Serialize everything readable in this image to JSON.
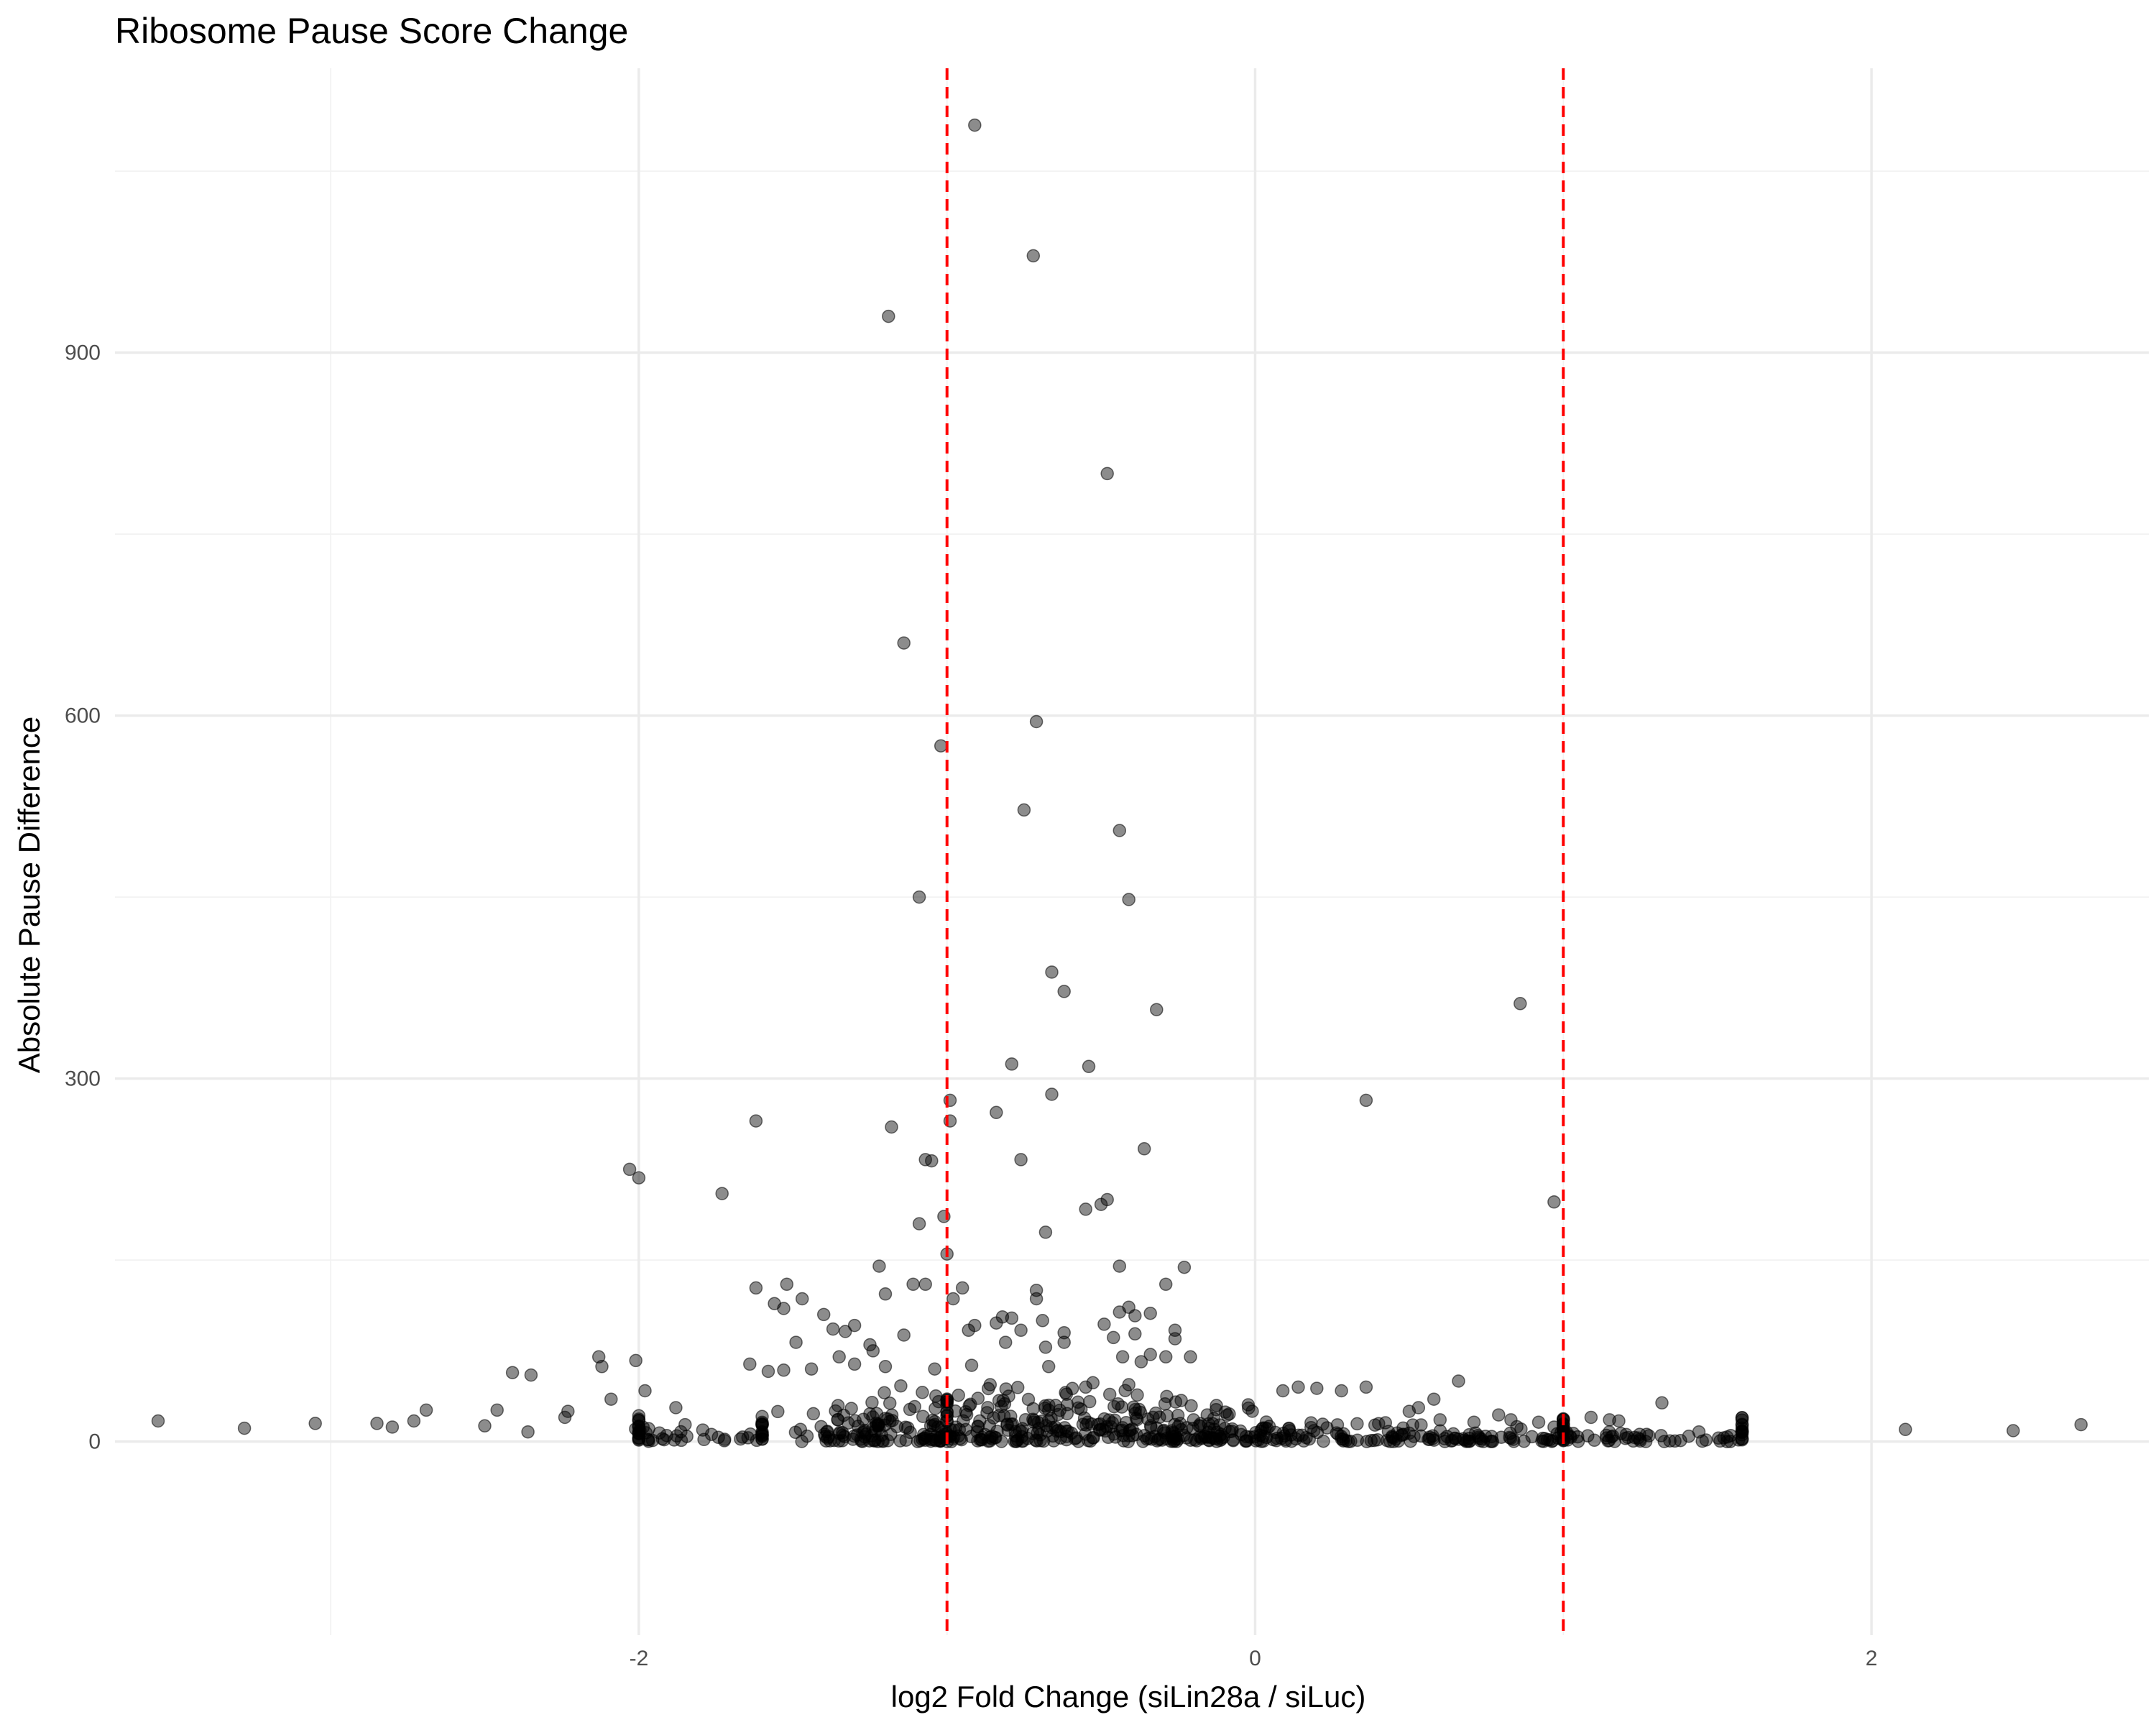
{
  "chart_data": {
    "type": "scatter",
    "title": "Ribosome Pause Score Change",
    "xlabel": "log2 Fold Change (siLin28a / siLuc)",
    "ylabel": "Absolute Pause Difference",
    "xlim": [
      -3.7,
      2.9
    ],
    "ylim": [
      -160,
      1135
    ],
    "x_ticks": [
      -2,
      0,
      2
    ],
    "y_ticks": [
      0,
      300,
      600,
      900
    ],
    "x_tick_labels": [
      "-2",
      "0",
      "2"
    ],
    "y_tick_labels": [
      "0",
      "300",
      "600",
      "900"
    ],
    "grid": true,
    "legend": "none",
    "reference_lines": [
      {
        "axis": "x",
        "value": -1,
        "color": "#ff0000",
        "style": "dashed"
      },
      {
        "axis": "x",
        "value": 1,
        "color": "#ff0000",
        "style": "dashed"
      }
    ],
    "point_color": "#000000",
    "points": [
      [
        -0.91,
        1088
      ],
      [
        -0.72,
        980
      ],
      [
        -1.19,
        930
      ],
      [
        -0.48,
        800
      ],
      [
        -1.14,
        660
      ],
      [
        -0.71,
        595
      ],
      [
        -1.02,
        575
      ],
      [
        -0.75,
        522
      ],
      [
        -0.44,
        505
      ],
      [
        -1.09,
        450
      ],
      [
        -0.41,
        448
      ],
      [
        -0.66,
        388
      ],
      [
        -0.62,
        372
      ],
      [
        -0.32,
        357
      ],
      [
        0.86,
        362
      ],
      [
        -0.79,
        312
      ],
      [
        -0.54,
        310
      ],
      [
        0.36,
        282
      ],
      [
        -0.99,
        282
      ],
      [
        -0.66,
        287
      ],
      [
        -0.84,
        272
      ],
      [
        -1.62,
        265
      ],
      [
        -1.18,
        260
      ],
      [
        -0.99,
        265
      ],
      [
        -2.03,
        225
      ],
      [
        -2.0,
        218
      ],
      [
        -0.36,
        242
      ],
      [
        -1.05,
        232
      ],
      [
        -1.07,
        233
      ],
      [
        -0.76,
        233
      ],
      [
        -1.73,
        205
      ],
      [
        -0.48,
        200
      ],
      [
        0.97,
        198
      ],
      [
        -0.5,
        196
      ],
      [
        -0.55,
        192
      ],
      [
        -1.01,
        186
      ],
      [
        -1.09,
        180
      ],
      [
        -0.68,
        173
      ],
      [
        -1.0,
        155
      ],
      [
        -1.22,
        145
      ],
      [
        -0.44,
        145
      ],
      [
        -0.23,
        144
      ],
      [
        -1.11,
        130
      ],
      [
        -1.07,
        130
      ],
      [
        -1.52,
        130
      ],
      [
        -1.62,
        127
      ],
      [
        -0.29,
        130
      ],
      [
        -0.95,
        127
      ],
      [
        -0.71,
        125
      ],
      [
        -1.2,
        122
      ],
      [
        -0.98,
        118
      ],
      [
        -0.71,
        118
      ],
      [
        -1.47,
        118
      ],
      [
        -1.56,
        114
      ],
      [
        -1.53,
        110
      ],
      [
        -0.41,
        111
      ],
      [
        -0.44,
        107
      ],
      [
        -0.34,
        106
      ],
      [
        -0.39,
        104
      ],
      [
        -1.4,
        105
      ],
      [
        -0.82,
        103
      ],
      [
        -0.79,
        102
      ],
      [
        -0.69,
        100
      ],
      [
        -0.84,
        98
      ],
      [
        -0.49,
        97
      ],
      [
        -0.91,
        96
      ],
      [
        -1.3,
        96
      ],
      [
        -1.37,
        93
      ],
      [
        -0.76,
        92
      ],
      [
        -0.93,
        92
      ],
      [
        -1.33,
        91
      ],
      [
        -0.39,
        89
      ],
      [
        -0.26,
        92
      ],
      [
        -0.62,
        90
      ],
      [
        -1.14,
        88
      ],
      [
        -0.46,
        86
      ],
      [
        -0.26,
        85
      ],
      [
        -0.62,
        82
      ],
      [
        -0.81,
        82
      ],
      [
        -0.68,
        78
      ],
      [
        -1.25,
        80
      ],
      [
        -1.49,
        82
      ],
      [
        -2.13,
        70
      ],
      [
        -2.01,
        67
      ],
      [
        -1.24,
        75
      ],
      [
        -1.35,
        70
      ],
      [
        -0.34,
        72
      ],
      [
        -0.29,
        70
      ],
      [
        -0.43,
        70
      ],
      [
        -0.37,
        66
      ],
      [
        -0.67,
        62
      ],
      [
        -0.92,
        63
      ],
      [
        -1.3,
        64
      ],
      [
        -0.21,
        70
      ],
      [
        -1.53,
        59
      ],
      [
        -2.12,
        62
      ],
      [
        -2.41,
        57
      ],
      [
        -2.35,
        55
      ],
      [
        -1.64,
        64
      ],
      [
        -1.58,
        58
      ],
      [
        -1.44,
        60
      ],
      [
        -1.2,
        62
      ],
      [
        -1.04,
        60
      ],
      [
        0.66,
        50
      ],
      [
        0.36,
        45
      ],
      [
        0.09,
        42
      ],
      [
        0.28,
        42
      ],
      [
        0.14,
        45
      ],
      [
        0.2,
        44
      ],
      [
        -1.15,
        46
      ],
      [
        -0.55,
        45
      ],
      [
        -0.41,
        47
      ],
      [
        -0.86,
        47
      ],
      [
        -1.88,
        28
      ],
      [
        -1.98,
        42
      ],
      [
        -2.09,
        35
      ],
      [
        -2.46,
        26
      ],
      [
        -2.23,
        25
      ],
      [
        -2.69,
        26
      ],
      [
        -3.05,
        15
      ],
      [
        -3.28,
        11
      ],
      [
        -3.56,
        17
      ],
      [
        -2.8,
        12
      ],
      [
        -2.85,
        15
      ],
      [
        -2.73,
        17
      ],
      [
        -2.5,
        13
      ],
      [
        -2.36,
        8
      ],
      [
        -2.24,
        20
      ],
      [
        -1.85,
        14
      ],
      [
        1.09,
        20
      ],
      [
        1.32,
        32
      ],
      [
        1.18,
        17
      ],
      [
        1.44,
        8
      ],
      [
        1.15,
        18
      ],
      [
        1.27,
        6
      ],
      [
        1.58,
        9
      ],
      [
        2.11,
        10
      ],
      [
        2.46,
        9
      ],
      [
        2.68,
        14
      ],
      [
        0.71,
        16
      ],
      [
        0.5,
        25
      ],
      [
        0.58,
        35
      ],
      [
        0.53,
        28
      ],
      [
        0.92,
        16
      ],
      [
        0.79,
        22
      ],
      [
        0.83,
        18
      ],
      [
        0.97,
        12
      ],
      [
        1.01,
        8
      ],
      [
        0.6,
        18
      ],
      [
        -0.2,
        18
      ]
    ],
    "dense_cluster_points_count": 620
  }
}
